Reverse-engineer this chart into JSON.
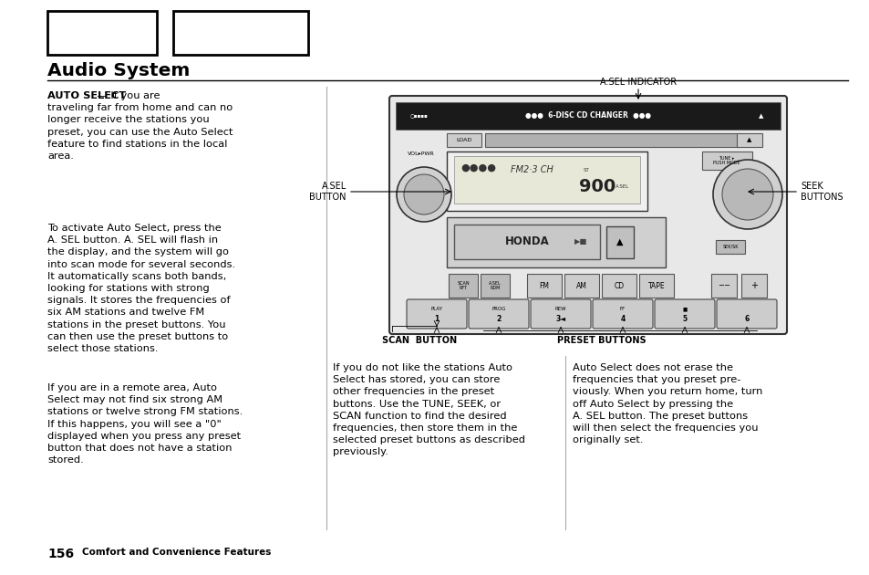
{
  "background_color": "#ffffff",
  "page_title": "Audio System",
  "page_number": "156",
  "page_footer": "Comfort and Convenience Features",
  "paragraph1_bold": "AUTO SELECT",
  "paragraph1_text": " — If you are\ntraveling far from home and can no\nlonger receive the stations you\npreset, you can use the Auto Select\nfeature to find stations in the local\narea.",
  "paragraph2_text": "To activate Auto Select, press the\nA. SEL button. A. SEL will flash in\nthe display, and the system will go\ninto scan mode for several seconds.\nIt automatically scans both bands,\nlooking for stations with strong\nsignals. It stores the frequencies of\nsix AM stations and twelve FM\nstations in the preset buttons. You\ncan then use the preset buttons to\nselect those stations.",
  "paragraph3_text": "If you are in a remote area, Auto\nSelect may not find six strong AM\nstations or twelve strong FM stations.\nIf this happens, you will see a \"0\"\ndisplayed when you press any preset\nbutton that does not have a station\nstored.",
  "bottom_left_text": "If you do not like the stations Auto\nSelect has stored, you can store\nother frequencies in the preset\nbuttons. Use the TUNE, SEEK, or\nSCAN function to find the desired\nfrequencies, then store them in the\nselected preset buttons as described\npreviously.",
  "bottom_right_text": "Auto Select does not erase the\nfrequencies that you preset pre-\nviously. When you return home, turn\noff Auto Select by pressing the\nA. SEL button. The preset buttons\nwill then select the frequencies you\noriginally set."
}
